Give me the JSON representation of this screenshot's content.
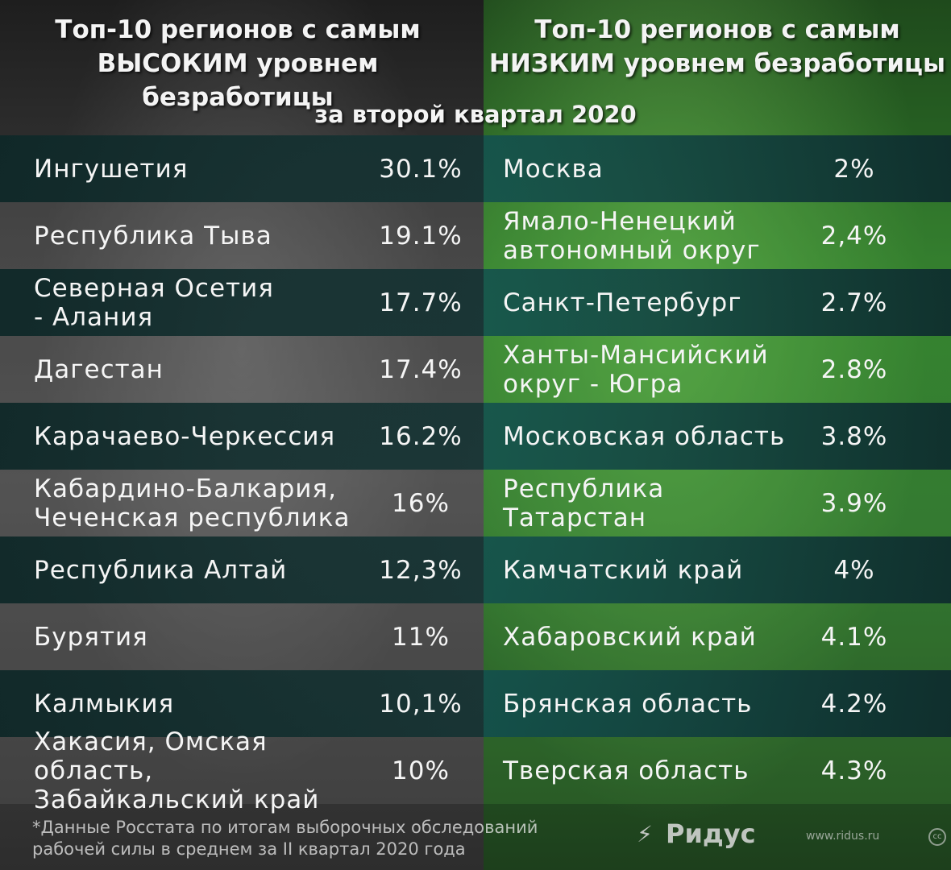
{
  "header_left": "Топ-10 регионов с самым\nВЫСОКИМ уровнем безработицы",
  "header_right": "Топ-10 регионов с самым\nНИЗКИМ уровнем безработицы",
  "subheader": "за второй квартал 2020",
  "rows": [
    {
      "left_name": "Ингушетия",
      "left_value": "30.1%",
      "right_name": "Москва",
      "right_value": "2%"
    },
    {
      "left_name": "Республика Тыва",
      "left_value": "19.1%",
      "right_name": "Ямало-Ненецкий\nавтономный округ",
      "right_value": "2,4%"
    },
    {
      "left_name": "Северная Осетия\n- Алания",
      "left_value": "17.7%",
      "right_name": "Санкт-Петербург",
      "right_value": "2.7%"
    },
    {
      "left_name": "Дагестан",
      "left_value": "17.4%",
      "right_name": "Ханты-Мансийский\nокруг - Югра",
      "right_value": "2.8%"
    },
    {
      "left_name": "Карачаево-Черкессия",
      "left_value": "16.2%",
      "right_name": "Московская область",
      "right_value": "3.8%"
    },
    {
      "left_name": "Кабардино-Балкария,\nЧеченская республика",
      "left_value": "16%",
      "right_name": "Республика\nТатарстан",
      "right_value": "3.9%"
    },
    {
      "left_name": "Республика Алтай",
      "left_value": "12,3%",
      "right_name": "Камчатский край",
      "right_value": "4%"
    },
    {
      "left_name": "Бурятия",
      "left_value": "11%",
      "right_name": "Хабаровский край",
      "right_value": "4.1%"
    },
    {
      "left_name": "Калмыкия",
      "left_value": "10,1%",
      "right_name": "Брянская область",
      "right_value": "4.2%"
    },
    {
      "left_name": "Хакасия, Омская область,\nЗабайкальский край",
      "left_value": "10%",
      "right_name": "Тверская область",
      "right_value": "4.3%"
    }
  ],
  "footnote": "*Данные Росстата по итогам выборочных обследований\nрабочей силы в среднем за II квартал 2020 года",
  "logo": {
    "icon": "lightning-icon",
    "text": "Ридус"
  },
  "site": "www.ridus.ru",
  "cc_badge": "cc",
  "colors": {
    "left_panel": "#3a3a3a",
    "right_panel": "#2f7a2a",
    "dark_stripe": "#143434"
  }
}
